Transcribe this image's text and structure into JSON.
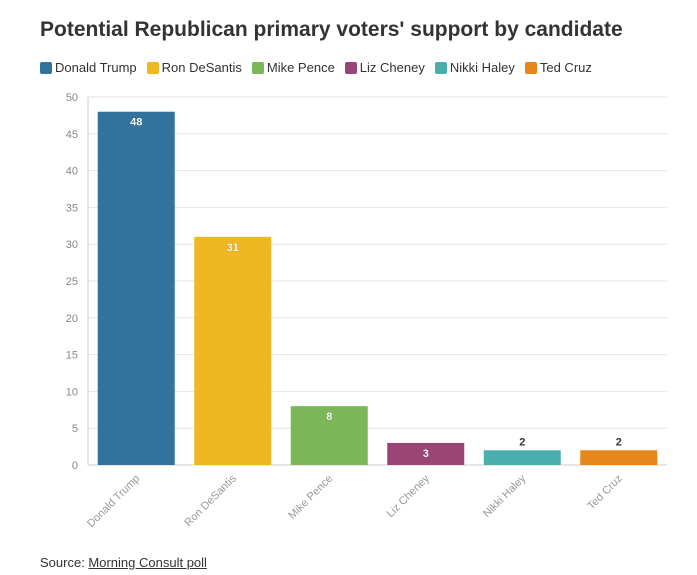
{
  "title": "Potential Republican primary voters' support by candidate",
  "source": {
    "prefix": "Source: ",
    "link_text": "Morning Consult poll"
  },
  "chart_data": {
    "type": "bar",
    "title": "Potential Republican primary voters' support by candidate",
    "categories": [
      "Donald Trump",
      "Ron DeSantis",
      "Mike Pence",
      "Liz Cheney",
      "Nikki Haley",
      "Ted Cruz"
    ],
    "values": [
      48,
      31,
      8,
      3,
      2,
      2
    ],
    "colors": [
      "#31739d",
      "#efb722",
      "#7db858",
      "#9b4577",
      "#4aaead",
      "#e6861b"
    ],
    "ylim": [
      0,
      50
    ],
    "yticks": [
      0,
      5,
      10,
      15,
      20,
      25,
      30,
      35,
      40,
      45,
      50
    ],
    "xlabel": "",
    "ylabel": "",
    "grid": true,
    "legend_position": "top-left"
  }
}
